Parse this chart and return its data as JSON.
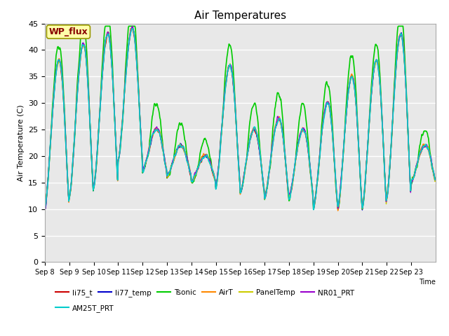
{
  "title": "Air Temperatures",
  "ylabel": "Air Temperature (C)",
  "xlabel": "Time",
  "ylim": [
    0,
    45
  ],
  "background_color": "#ffffff",
  "plot_bg_color": "#e8e8e8",
  "series_order": [
    "li75_t",
    "li77_temp",
    "Tsonic",
    "AirT",
    "PanelTemp",
    "NR01_PRT",
    "AM25T_PRT"
  ],
  "series": {
    "li75_t": {
      "color": "#cc0000",
      "lw": 1.0
    },
    "li77_temp": {
      "color": "#0000cc",
      "lw": 1.0
    },
    "Tsonic": {
      "color": "#00cc00",
      "lw": 1.2
    },
    "AirT": {
      "color": "#ff8800",
      "lw": 1.0
    },
    "PanelTemp": {
      "color": "#cccc00",
      "lw": 1.0
    },
    "NR01_PRT": {
      "color": "#9900cc",
      "lw": 1.0
    },
    "AM25T_PRT": {
      "color": "#00cccc",
      "lw": 1.2
    }
  },
  "xtick_labels": [
    "Sep 8",
    "Sep 9",
    "Sep 10",
    "Sep 11",
    "Sep 12",
    "Sep 13",
    "Sep 14",
    "Sep 15",
    "Sep 16",
    "Sep 17",
    "Sep 18",
    "Sep 19",
    "Sep 20",
    "Sep 21",
    "Sep 22",
    "Sep 23"
  ],
  "ytick_vals": [
    0,
    5,
    10,
    15,
    20,
    25,
    30,
    35,
    40,
    45
  ],
  "wp_flux_box_color": "#ffffaa",
  "wp_flux_text_color": "#880000",
  "grid_color": "#ffffff",
  "grid_lw": 1.0,
  "day_profiles": [
    {
      "min": 10,
      "max": 38,
      "tsonic_extra": 3
    },
    {
      "min": 12,
      "max": 41,
      "tsonic_extra": 4
    },
    {
      "min": 14,
      "max": 43,
      "tsonic_extra": 4
    },
    {
      "min": 19,
      "max": 44,
      "tsonic_extra": 5
    },
    {
      "min": 17,
      "max": 25,
      "tsonic_extra": 5
    },
    {
      "min": 16,
      "max": 22,
      "tsonic_extra": 4
    },
    {
      "min": 15,
      "max": 20,
      "tsonic_extra": 3
    },
    {
      "min": 14,
      "max": 37,
      "tsonic_extra": 4
    },
    {
      "min": 13,
      "max": 25,
      "tsonic_extra": 5
    },
    {
      "min": 12,
      "max": 27,
      "tsonic_extra": 5
    },
    {
      "min": 12,
      "max": 25,
      "tsonic_extra": 5
    },
    {
      "min": 10,
      "max": 30,
      "tsonic_extra": 4
    },
    {
      "min": 10,
      "max": 35,
      "tsonic_extra": 4
    },
    {
      "min": 10,
      "max": 38,
      "tsonic_extra": 3
    },
    {
      "min": 12,
      "max": 43,
      "tsonic_extra": 4
    },
    {
      "min": 15,
      "max": 22,
      "tsonic_extra": 3
    }
  ]
}
